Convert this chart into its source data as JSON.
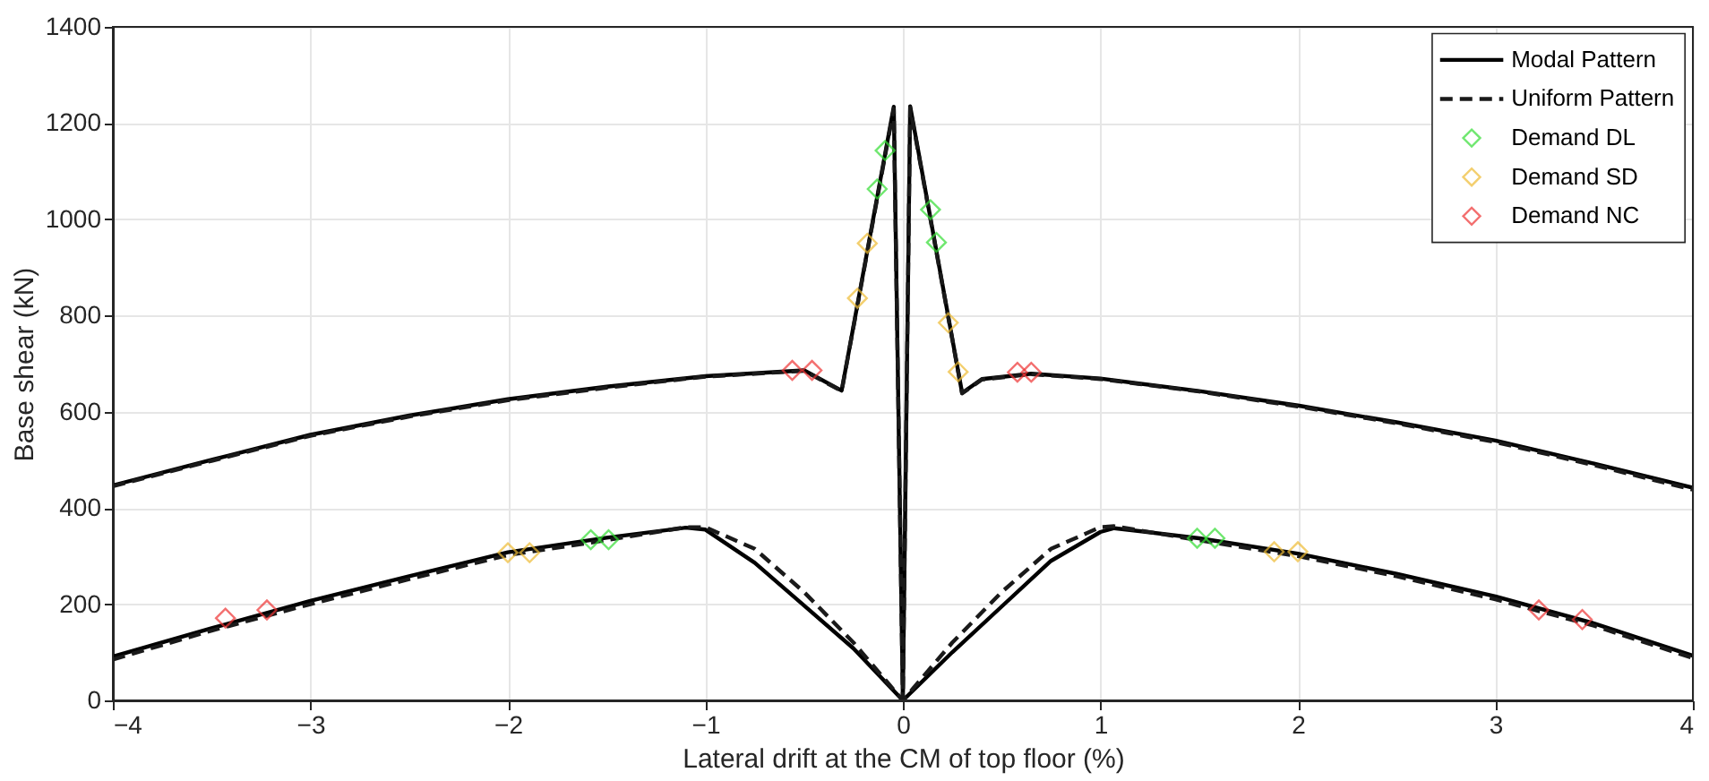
{
  "chart_data": {
    "type": "line",
    "xlabel": "Lateral drift at the CM of top floor (%)",
    "ylabel": "Base shear (kN)",
    "xlim": [
      -4,
      4
    ],
    "ylim": [
      0,
      1400
    ],
    "xticks": [
      -4,
      -3,
      -2,
      -1,
      0,
      1,
      2,
      3,
      4
    ],
    "yticks": [
      0,
      200,
      400,
      600,
      800,
      1000,
      1200,
      1400
    ],
    "grid": true,
    "legend": "top right",
    "series": [
      {
        "name": "Modal Pattern",
        "type": "line",
        "line_style": "solid",
        "marker": "none",
        "color": "#000000",
        "x": [
          -4,
          -3.5,
          -3,
          -2.5,
          -2,
          -1.5,
          -1,
          -0.5,
          -0.31,
          -0.046,
          0,
          0.037,
          0.3,
          0.4,
          0.65,
          1,
          1.5,
          2,
          2.5,
          3,
          3.5,
          4,
          null,
          -4,
          -3.5,
          -3,
          -2.5,
          -2,
          -1.5,
          -1.1,
          -1,
          -0.75,
          -0.5,
          -0.25,
          0,
          0.25,
          0.5,
          0.75,
          1,
          1.07,
          1.5,
          2,
          2.5,
          3,
          3.5,
          4
        ],
        "values": [
          447,
          500,
          552,
          592,
          626,
          652,
          674,
          686,
          644,
          1234,
          0,
          1235,
          639,
          668,
          679,
          669,
          643,
          613,
          578,
          540,
          492,
          442,
          null,
          91,
          150,
          207,
          258,
          308,
          338,
          359,
          355,
          286,
          197,
          108,
          0,
          100,
          195,
          290,
          350,
          358,
          337,
          305,
          263,
          216,
          160,
          93
        ]
      },
      {
        "name": "Uniform Pattern",
        "type": "line",
        "line_style": "dashed",
        "marker": "none",
        "color": "#1a1a1a",
        "x": [
          -4,
          -3.5,
          -3,
          -2.5,
          -2,
          -1.5,
          -1,
          -0.5,
          -0.31,
          -0.046,
          0,
          0.037,
          0.3,
          0.4,
          0.65,
          1,
          1.5,
          2,
          2.5,
          3,
          3.5,
          4,
          null,
          -4,
          -3.5,
          -3,
          -2.5,
          -2,
          -1.5,
          -1.1,
          -1,
          -0.75,
          -0.5,
          -0.25,
          0,
          0.25,
          0.5,
          0.75,
          1,
          1.07,
          1.5,
          2,
          2.5,
          3,
          3.5,
          4
        ],
        "values": [
          445,
          498,
          550,
          590,
          624,
          650,
          673,
          685,
          643,
          1230,
          0,
          1232,
          638,
          667,
          678,
          668,
          642,
          611,
          576,
          537,
          489,
          438,
          null,
          85,
          145,
          200,
          252,
          302,
          333,
          360,
          360,
          315,
          225,
          120,
          0,
          120,
          225,
          315,
          360,
          362,
          333,
          300,
          258,
          210,
          155,
          88
        ]
      },
      {
        "name": "Demand DL",
        "type": "scatter",
        "marker": "diamond",
        "color": "#33dd33",
        "x": [
          -0.09,
          -0.13,
          0.14,
          0.17,
          -1.58,
          -1.49,
          1.49,
          1.58
        ],
        "values": [
          1143,
          1063,
          1020,
          952,
          334,
          334,
          337,
          337
        ]
      },
      {
        "name": "Demand SD",
        "type": "scatter",
        "marker": "diamond",
        "color": "#eebb33",
        "x": [
          -0.18,
          -0.23,
          0.23,
          0.28,
          -2.0,
          -1.89,
          1.88,
          2.0
        ],
        "values": [
          950,
          836,
          785,
          683,
          307,
          307,
          309,
          309
        ]
      },
      {
        "name": "Demand NC",
        "type": "scatter",
        "marker": "diamond",
        "color": "#ee3333",
        "x": [
          -0.56,
          -0.46,
          0.58,
          0.65,
          -3.43,
          -3.22,
          3.22,
          3.44
        ],
        "values": [
          686,
          686,
          682,
          682,
          171,
          188,
          188,
          168
        ]
      }
    ]
  }
}
